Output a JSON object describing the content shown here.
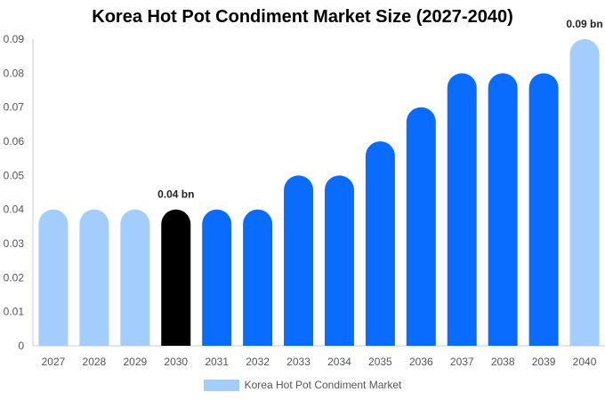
{
  "chart_data": {
    "type": "bar",
    "title": "Korea Hot Pot Condiment Market Size (2027-2040)",
    "categories": [
      "2027",
      "2028",
      "2029",
      "2030",
      "2031",
      "2032",
      "2033",
      "2034",
      "2035",
      "2036",
      "2037",
      "2038",
      "2039",
      "2040"
    ],
    "series": [
      {
        "name": "Korea Hot Pot Condiment Market",
        "values": [
          0.04,
          0.04,
          0.04,
          0.04,
          0.04,
          0.04,
          0.05,
          0.05,
          0.06,
          0.07,
          0.08,
          0.08,
          0.08,
          0.09
        ]
      }
    ],
    "bar_colors": [
      "#a3cdfc",
      "#a3cdfc",
      "#a3cdfc",
      "#000000",
      "#0a6cff",
      "#0a6cff",
      "#0a6cff",
      "#0a6cff",
      "#0a6cff",
      "#0a6cff",
      "#0a6cff",
      "#0a6cff",
      "#0a6cff",
      "#a3cdfc"
    ],
    "data_labels": [
      {
        "index": 3,
        "text": "0.04 bn"
      },
      {
        "index": 13,
        "text": "0.09 bn"
      }
    ],
    "yticks": [
      "0",
      "0.01",
      "0.02",
      "0.03",
      "0.04",
      "0.05",
      "0.06",
      "0.07",
      "0.08",
      "0.09"
    ],
    "ylim": [
      0,
      0.09
    ],
    "legend": {
      "label": "Korea Hot Pot Condiment Market",
      "color": "#a3cdfc",
      "position": "bottom"
    },
    "grid": false
  }
}
